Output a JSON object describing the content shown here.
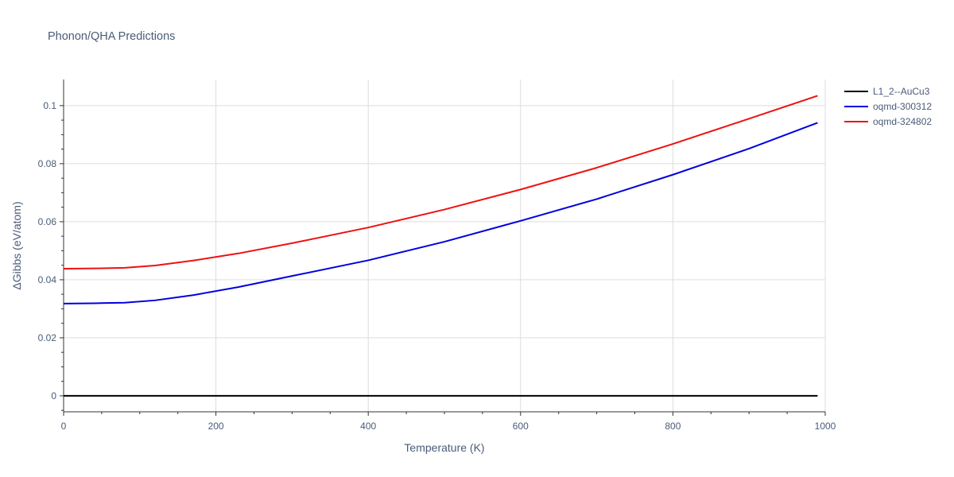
{
  "chart_data": {
    "type": "line",
    "title": "Phonon/QHA Predictions",
    "xlabel": "Temperature (K)",
    "ylabel": "ΔGibbs (eV/atom)",
    "xlim": [
      0,
      1000
    ],
    "ylim": [
      -0.0055,
      0.109
    ],
    "xticks": [
      0,
      200,
      400,
      600,
      800,
      1000
    ],
    "xtick_labels": [
      "0",
      "200",
      "400",
      "600",
      "800",
      "1000"
    ],
    "yticks": [
      0,
      0.02,
      0.04,
      0.06,
      0.08,
      0.1
    ],
    "ytick_labels": [
      "0",
      "0.02",
      "0.04",
      "0.06",
      "0.08",
      "0.1"
    ],
    "grid": true,
    "legend_position": "top-right",
    "series": [
      {
        "name": "L1_2--AuCu3",
        "color": "#000000",
        "x": [
          0,
          100,
          200,
          300,
          400,
          500,
          600,
          700,
          800,
          900,
          990
        ],
        "y": [
          0,
          0,
          0,
          0,
          0,
          0,
          0,
          0,
          0,
          0,
          0
        ]
      },
      {
        "name": "oqmd-300312",
        "color": "#0000dd",
        "x": [
          0,
          40,
          80,
          120,
          170,
          230,
          300,
          400,
          500,
          600,
          700,
          800,
          900,
          990
        ],
        "y": [
          0.0318,
          0.0319,
          0.0321,
          0.0329,
          0.0347,
          0.0375,
          0.0413,
          0.0467,
          0.0531,
          0.0603,
          0.0678,
          0.0762,
          0.0852,
          0.0941
        ]
      },
      {
        "name": "oqmd-324802",
        "color": "#ee1111",
        "x": [
          0,
          40,
          80,
          120,
          170,
          230,
          300,
          400,
          500,
          600,
          700,
          800,
          900,
          990
        ],
        "y": [
          0.0438,
          0.0439,
          0.0441,
          0.0449,
          0.0466,
          0.0491,
          0.0526,
          0.058,
          0.0642,
          0.0711,
          0.0786,
          0.0868,
          0.0955,
          0.1034
        ]
      }
    ]
  }
}
